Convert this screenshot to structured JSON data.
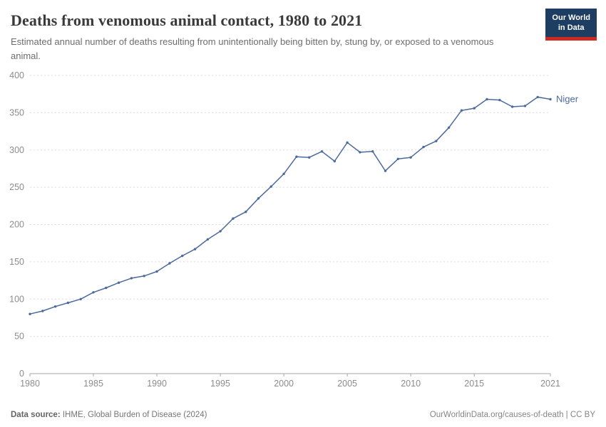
{
  "logo": {
    "line1": "Our World",
    "line2": "in Data"
  },
  "header": {
    "title": "Deaths from venomous animal contact, 1980 to 2021",
    "subtitle": "Estimated annual number of deaths resulting from unintentionally being bitten by, stung by, or exposed to a venomous animal."
  },
  "chart_data": {
    "type": "line",
    "title": "Deaths from venomous animal contact, 1980 to 2021",
    "xlabel": "",
    "ylabel": "",
    "xlim": [
      1980,
      2021
    ],
    "ylim": [
      0,
      400
    ],
    "x_ticks": [
      1980,
      1985,
      1990,
      1995,
      2000,
      2005,
      2010,
      2015,
      2021
    ],
    "y_ticks": [
      0,
      50,
      100,
      150,
      200,
      250,
      300,
      350,
      400
    ],
    "grid": "horizontal-dashed",
    "legend_position": "end-of-line",
    "end_label": "Niger",
    "series": [
      {
        "name": "Niger",
        "color": "#4c6a9c",
        "x": [
          1980,
          1981,
          1982,
          1983,
          1984,
          1985,
          1986,
          1987,
          1988,
          1989,
          1990,
          1991,
          1992,
          1993,
          1994,
          1995,
          1996,
          1997,
          1998,
          1999,
          2000,
          2001,
          2002,
          2003,
          2004,
          2005,
          2006,
          2007,
          2008,
          2009,
          2010,
          2011,
          2012,
          2013,
          2014,
          2015,
          2016,
          2017,
          2018,
          2019,
          2020,
          2021
        ],
        "values": [
          80,
          84,
          90,
          95,
          100,
          109,
          115,
          122,
          128,
          131,
          137,
          148,
          158,
          167,
          180,
          191,
          208,
          217,
          235,
          251,
          268,
          291,
          290,
          298,
          285,
          310,
          297,
          298,
          272,
          288,
          290,
          304,
          312,
          330,
          353,
          356,
          368,
          367,
          358,
          359,
          371,
          368
        ]
      }
    ]
  },
  "footer": {
    "source_label": "Data source:",
    "source_text": " IHME, Global Burden of Disease (2024)",
    "credit": "OurWorldinData.org/causes-of-death | CC BY"
  },
  "colors": {
    "line": "#4c6a9c",
    "axis_text": "#8c8c8c",
    "grid": "#dcdcdc",
    "axis_line": "#a5a5a5",
    "logo_bg": "#1d3d63",
    "logo_red": "#d02a20"
  }
}
